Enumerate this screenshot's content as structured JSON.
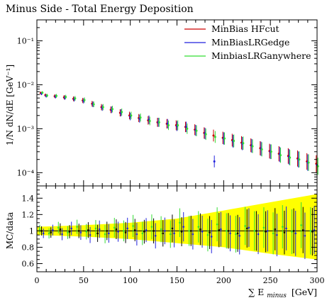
{
  "chart_data": [
    {
      "type": "scatter",
      "title": "Minus Side - Total Energy Deposition",
      "ylabel": "1/N dN/dE [GeV⁻¹]",
      "yscale": "log",
      "xlim": [
        0,
        300
      ],
      "ylim": [
        5e-05,
        0.3
      ],
      "xticks": [
        0,
        50,
        100,
        150,
        200,
        250,
        300
      ],
      "yticks": [
        {
          "value": 0.1,
          "label": "10⁻¹"
        },
        {
          "value": 0.01,
          "label": "10⁻²"
        },
        {
          "value": 0.001,
          "label": "10⁻³"
        },
        {
          "value": 0.0001,
          "label": "10⁻⁴"
        }
      ],
      "legend": {
        "position": "top-right",
        "entries": [
          {
            "label": "MinBias HFcut",
            "color": "#cc0000"
          },
          {
            "label": "MinBiasLRGedge",
            "color": "#2222dd"
          },
          {
            "label": "MinbiasLRGanywhere",
            "color": "#33dd33"
          }
        ]
      },
      "series": [
        {
          "name": "MinBias HFcut",
          "color": "#cc0000",
          "x": [
            5,
            10,
            20,
            30,
            40,
            50,
            60,
            70,
            80,
            90,
            100,
            110,
            120,
            130,
            140,
            150,
            160,
            170,
            180,
            190,
            200,
            210,
            220,
            230,
            240,
            250,
            260,
            270,
            280,
            290,
            300
          ],
          "y": [
            0.0065,
            0.0058,
            0.0055,
            0.0052,
            0.0048,
            0.0044,
            0.0037,
            0.0031,
            0.0027,
            0.0023,
            0.002,
            0.00175,
            0.00155,
            0.0014,
            0.0013,
            0.0012,
            0.0011,
            0.00095,
            0.0008,
            0.0007,
            0.00062,
            0.00055,
            0.00048,
            0.00042,
            0.00036,
            0.00031,
            0.00027,
            0.00024,
            0.00021,
            0.00018,
            0.00016
          ]
        },
        {
          "name": "MinBiasLRGedge",
          "color": "#2222dd",
          "x": [
            5,
            10,
            20,
            30,
            40,
            50,
            60,
            70,
            80,
            90,
            100,
            110,
            120,
            130,
            140,
            150,
            160,
            170,
            180,
            190,
            200,
            210,
            220,
            230,
            240,
            250,
            260,
            270,
            280,
            290,
            300
          ],
          "y": [
            0.0063,
            0.0056,
            0.0054,
            0.0051,
            0.0047,
            0.0043,
            0.0036,
            0.003,
            0.0027,
            0.0023,
            0.0019,
            0.0017,
            0.0016,
            0.0014,
            0.0013,
            0.00115,
            0.0011,
            0.00092,
            0.00078,
            0.00018,
            0.0006,
            0.00052,
            0.00046,
            0.00041,
            0.00035,
            0.0003,
            0.00026,
            0.00023,
            0.0002,
            0.00017,
            0.00015
          ]
        },
        {
          "name": "MinbiasLRGanywhere",
          "color": "#33dd33",
          "x": [
            5,
            10,
            20,
            30,
            40,
            50,
            60,
            70,
            80,
            90,
            100,
            110,
            120,
            130,
            140,
            150,
            160,
            170,
            180,
            190,
            200,
            210,
            220,
            230,
            240,
            250,
            260,
            270,
            280,
            290,
            300
          ],
          "y": [
            0.0066,
            0.0057,
            0.0056,
            0.0053,
            0.0049,
            0.0045,
            0.0036,
            0.0031,
            0.0028,
            0.0024,
            0.002,
            0.0018,
            0.0015,
            0.0014,
            0.0012,
            0.0012,
            0.001,
            0.0009,
            0.00075,
            0.00065,
            0.0006,
            0.00053,
            0.00047,
            0.0004,
            0.00034,
            0.0003,
            0.00025,
            0.00022,
            0.0002,
            0.00017,
            0.00014
          ]
        }
      ]
    },
    {
      "type": "scatter",
      "ylabel": "MC/data",
      "xlabel": "∑ E",
      "xlabel_sub": "minus",
      "xlabel_unit": "[GeV]",
      "xlim": [
        0,
        300
      ],
      "ylim": [
        0.5,
        1.55
      ],
      "xticks": [
        0,
        50,
        100,
        150,
        200,
        250,
        300
      ],
      "yticks": [
        {
          "value": 0.6,
          "label": "0.6"
        },
        {
          "value": 0.8,
          "label": "0.8"
        },
        {
          "value": 1.0,
          "label": "1"
        },
        {
          "value": 1.2,
          "label": "1.2"
        },
        {
          "value": 1.4,
          "label": "1.4"
        }
      ],
      "reference_band": {
        "color": "#ffff00",
        "x": [
          0,
          50,
          100,
          150,
          200,
          250,
          300
        ],
        "low": [
          0.95,
          0.93,
          0.9,
          0.85,
          0.8,
          0.72,
          0.65
        ],
        "high": [
          1.05,
          1.07,
          1.1,
          1.15,
          1.25,
          1.35,
          1.45
        ]
      },
      "series": [
        {
          "name": "MinBias HFcut",
          "color": "#000000",
          "x": [
            5,
            15,
            25,
            35,
            45,
            55,
            65,
            75,
            85,
            95,
            105,
            115,
            125,
            135,
            145,
            155,
            165,
            175,
            185,
            195,
            205,
            215,
            225,
            235,
            245,
            255,
            265,
            275,
            285,
            295
          ],
          "y": [
            1.0,
            0.98,
            1.02,
            0.99,
            1.0,
            1.01,
            0.97,
            1.0,
            1.02,
            0.98,
            1.01,
            0.99,
            1.0,
            0.97,
            1.03,
            0.99,
            1.0,
            1.02,
            0.98,
            1.01,
            1.0,
            0.97,
            1.03,
            1.0,
            0.99,
            1.02,
            0.98,
            1.0,
            1.01,
            0.99
          ]
        },
        {
          "name": "MinBiasLRGedge",
          "color": "#2222dd",
          "x": [
            7,
            17,
            27,
            37,
            47,
            57,
            67,
            77,
            87,
            97,
            107,
            117,
            127,
            137,
            147,
            157,
            167,
            177,
            187,
            197,
            207,
            217,
            227,
            237,
            247,
            257,
            267,
            277,
            287,
            297
          ],
          "y": [
            0.97,
            1.01,
            0.96,
            1.03,
            0.98,
            0.95,
            1.02,
            0.97,
            0.99,
            1.03,
            0.96,
            1.01,
            0.94,
            1.0,
            0.97,
            1.05,
            0.96,
            0.99,
            0.93,
            1.02,
            0.97,
            0.94,
            1.04,
            0.96,
            1.0,
            0.95,
            1.03,
            0.97,
            0.94,
            1.01
          ]
        },
        {
          "name": "MinbiasLRGanywhere",
          "color": "#33dd33",
          "x": [
            3,
            13,
            23,
            33,
            43,
            53,
            63,
            73,
            83,
            93,
            103,
            113,
            123,
            133,
            143,
            153,
            163,
            173,
            183,
            193,
            203,
            213,
            223,
            233,
            243,
            253,
            263,
            273,
            283,
            293
          ],
          "y": [
            1.02,
            0.97,
            1.04,
            0.98,
            1.05,
            0.99,
            1.03,
            0.96,
            1.04,
            1.0,
            1.06,
            0.97,
            1.05,
            1.02,
            0.96,
            1.1,
            1.0,
            1.05,
            0.95,
            1.08,
            1.0,
            0.96,
            1.06,
            1.0,
            1.04,
            0.97,
            1.05,
            0.99,
            1.07,
            1.0
          ]
        }
      ]
    }
  ]
}
